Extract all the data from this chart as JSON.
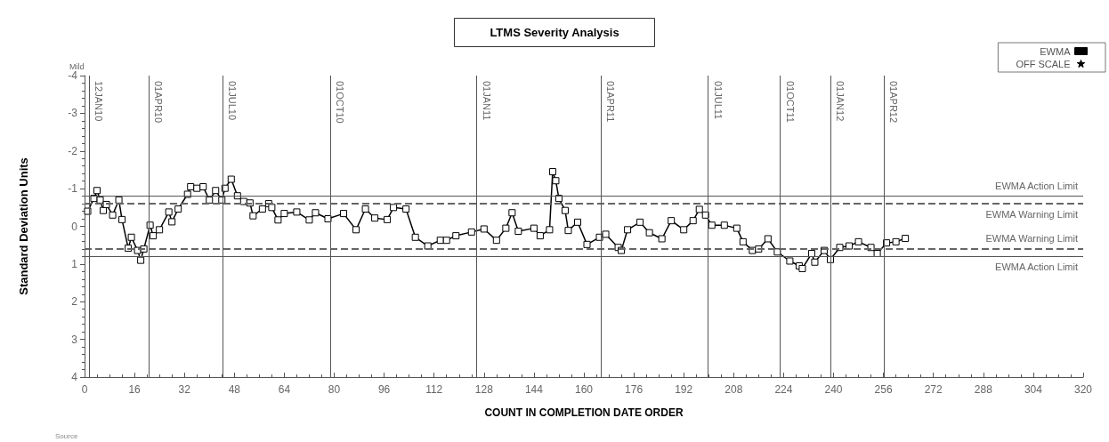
{
  "chart_data": {
    "type": "line",
    "title": "LTMS Severity Analysis",
    "xlabel": "COUNT IN COMPLETION DATE ORDER",
    "ylabel": "Standard Deviation Units",
    "annotations": [
      "Mild",
      "Source"
    ],
    "xlim": [
      0,
      320
    ],
    "xticks": [
      0,
      16,
      32,
      48,
      64,
      80,
      96,
      112,
      128,
      144,
      160,
      176,
      192,
      208,
      224,
      240,
      256,
      272,
      288,
      304,
      320
    ],
    "ylim": [
      4,
      -4
    ],
    "yticks": [
      -4,
      -3,
      -2,
      -1,
      0,
      1,
      2,
      3,
      4
    ],
    "grid": false,
    "legend": "top right",
    "line_style": "solid",
    "series": [
      {
        "name": "EWMA",
        "color": "#000000",
        "marker": "square",
        "x": [
          1,
          3,
          4,
          5,
          6,
          7,
          9,
          11,
          12,
          14,
          15,
          17,
          18,
          19,
          21,
          22,
          24,
          27,
          28,
          30,
          33,
          34,
          36,
          38,
          40,
          42,
          44,
          45,
          47,
          49,
          51,
          53,
          54,
          57,
          59,
          60,
          62,
          64,
          68,
          72,
          74,
          78,
          83,
          87,
          90,
          93,
          97,
          99,
          103,
          106,
          110,
          114,
          116,
          119,
          124,
          128,
          132,
          135,
          137,
          139,
          144,
          146,
          149,
          150,
          151,
          152,
          154,
          155,
          158,
          161,
          165,
          167,
          171,
          172,
          174,
          178,
          181,
          185,
          188,
          192,
          195,
          197,
          199,
          201,
          205,
          209,
          211,
          214,
          216,
          219,
          222,
          226,
          229,
          230,
          233,
          234,
          237,
          239,
          242,
          245,
          248,
          252,
          254,
          257,
          260,
          263
        ],
        "values": [
          -0.4,
          -0.74,
          -0.95,
          -0.7,
          -0.42,
          -0.58,
          -0.3,
          -0.7,
          -0.18,
          0.58,
          0.29,
          0.64,
          0.9,
          0.6,
          -0.03,
          0.25,
          0.09,
          -0.38,
          -0.12,
          -0.46,
          -0.85,
          -1.05,
          -1.01,
          -1.05,
          -0.7,
          -0.95,
          -0.7,
          -1.01,
          -1.25,
          -0.81,
          -0.66,
          -0.62,
          -0.28,
          -0.46,
          -0.6,
          -0.5,
          -0.17,
          -0.34,
          -0.38,
          -0.17,
          -0.36,
          -0.2,
          -0.34,
          0.09,
          -0.46,
          -0.22,
          -0.18,
          -0.5,
          -0.46,
          0.29,
          0.52,
          0.37,
          0.37,
          0.25,
          0.15,
          0.07,
          0.37,
          0.05,
          -0.36,
          0.13,
          0.05,
          0.25,
          0.09,
          -1.45,
          -1.21,
          -0.74,
          -0.42,
          0.11,
          -0.11,
          0.48,
          0.29,
          0.21,
          0.56,
          0.64,
          0.09,
          -0.11,
          0.17,
          0.33,
          -0.15,
          0.09,
          -0.15,
          -0.45,
          -0.3,
          -0.03,
          -0.03,
          0.05,
          0.41,
          0.64,
          0.6,
          0.33,
          0.68,
          0.92,
          1.05,
          1.12,
          0.72,
          0.95,
          0.64,
          0.88,
          0.56,
          0.52,
          0.41,
          0.56,
          0.72,
          0.44,
          0.41,
          0.32
        ]
      },
      {
        "name": "OFF SCALE",
        "color": "#000000",
        "marker": "star"
      }
    ],
    "ref_lines": [
      {
        "axis": "y",
        "value": -0.8,
        "label": "EWMA Action Limit",
        "color": "#555555",
        "line_style": "solid"
      },
      {
        "axis": "y",
        "value": -0.6,
        "label": "EWMA Warning Limit",
        "color": "#666666",
        "line_style": "dashed"
      },
      {
        "axis": "y",
        "value": 0.6,
        "label": "EWMA Warning Limit",
        "color": "#666666",
        "line_style": "dashed"
      },
      {
        "axis": "y",
        "value": 0.8,
        "label": "EWMA Action Limit",
        "color": "#555555",
        "line_style": "solid"
      },
      {
        "axis": "x",
        "value": 1.4,
        "label": "12JAN10",
        "color": "#555555"
      },
      {
        "axis": "x",
        "value": 20.5,
        "label": "01APR10",
        "color": "#555555"
      },
      {
        "axis": "x",
        "value": 44.2,
        "label": "01JUL10",
        "color": "#555555"
      },
      {
        "axis": "x",
        "value": 78.7,
        "label": "01OCT10",
        "color": "#555555"
      },
      {
        "axis": "x",
        "value": 125.5,
        "label": "01JAN11",
        "color": "#555555"
      },
      {
        "axis": "x",
        "value": 165.4,
        "label": "01APR11",
        "color": "#555555"
      },
      {
        "axis": "x",
        "value": 199.7,
        "label": "01JUL11",
        "color": "#555555"
      },
      {
        "axis": "x",
        "value": 222.8,
        "label": "01OCT11",
        "color": "#555555"
      },
      {
        "axis": "x",
        "value": 239,
        "label": "01JAN12",
        "color": "#555555"
      },
      {
        "axis": "x",
        "value": 256.1,
        "label": "01APR12",
        "color": "#555555"
      }
    ]
  }
}
